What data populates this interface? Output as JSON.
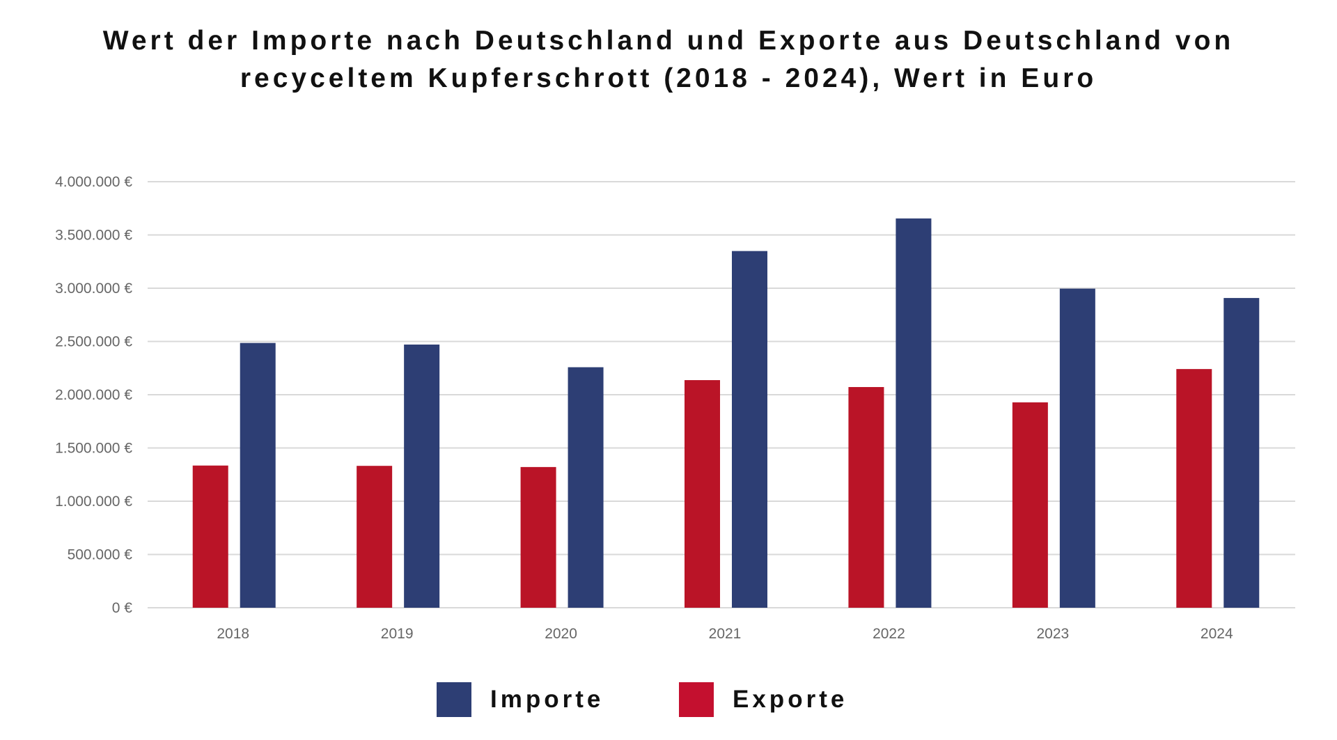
{
  "chart_data": {
    "type": "bar",
    "title_lines": [
      "Wert der Importe nach Deutschland und Exporte aus Deutschland von",
      "recyceltem Kupferschrott (2018 - 2024), Wert in Euro"
    ],
    "categories": [
      "2018",
      "2019",
      "2020",
      "2021",
      "2022",
      "2023",
      "2024"
    ],
    "series": [
      {
        "name": "Exporte",
        "color": "#BA1427",
        "values": [
          1335000,
          1332000,
          1321000,
          2137000,
          2072000,
          1928000,
          2241000
        ]
      },
      {
        "name": "Importe",
        "color": "#2D3E74",
        "values": [
          2486000,
          2471000,
          2258000,
          3349000,
          3655000,
          2996000,
          2908000
        ]
      }
    ],
    "ylim": [
      0,
      4000000
    ],
    "yticks": [
      0,
      500000,
      1000000,
      1500000,
      2000000,
      2500000,
      3000000,
      3500000,
      4000000
    ],
    "ytick_labels": [
      "0 €",
      "500.000 €",
      "1.000.000 €",
      "1.500.000 €",
      "2.000.000 €",
      "2.500.000 €",
      "3.000.000 €",
      "3.500.000 €",
      "4.000.000 €"
    ],
    "grid": true,
    "xlabel": "",
    "ylabel": "",
    "legend": {
      "placement": "bottom",
      "entries": [
        "Importe",
        "Exporte"
      ]
    }
  }
}
